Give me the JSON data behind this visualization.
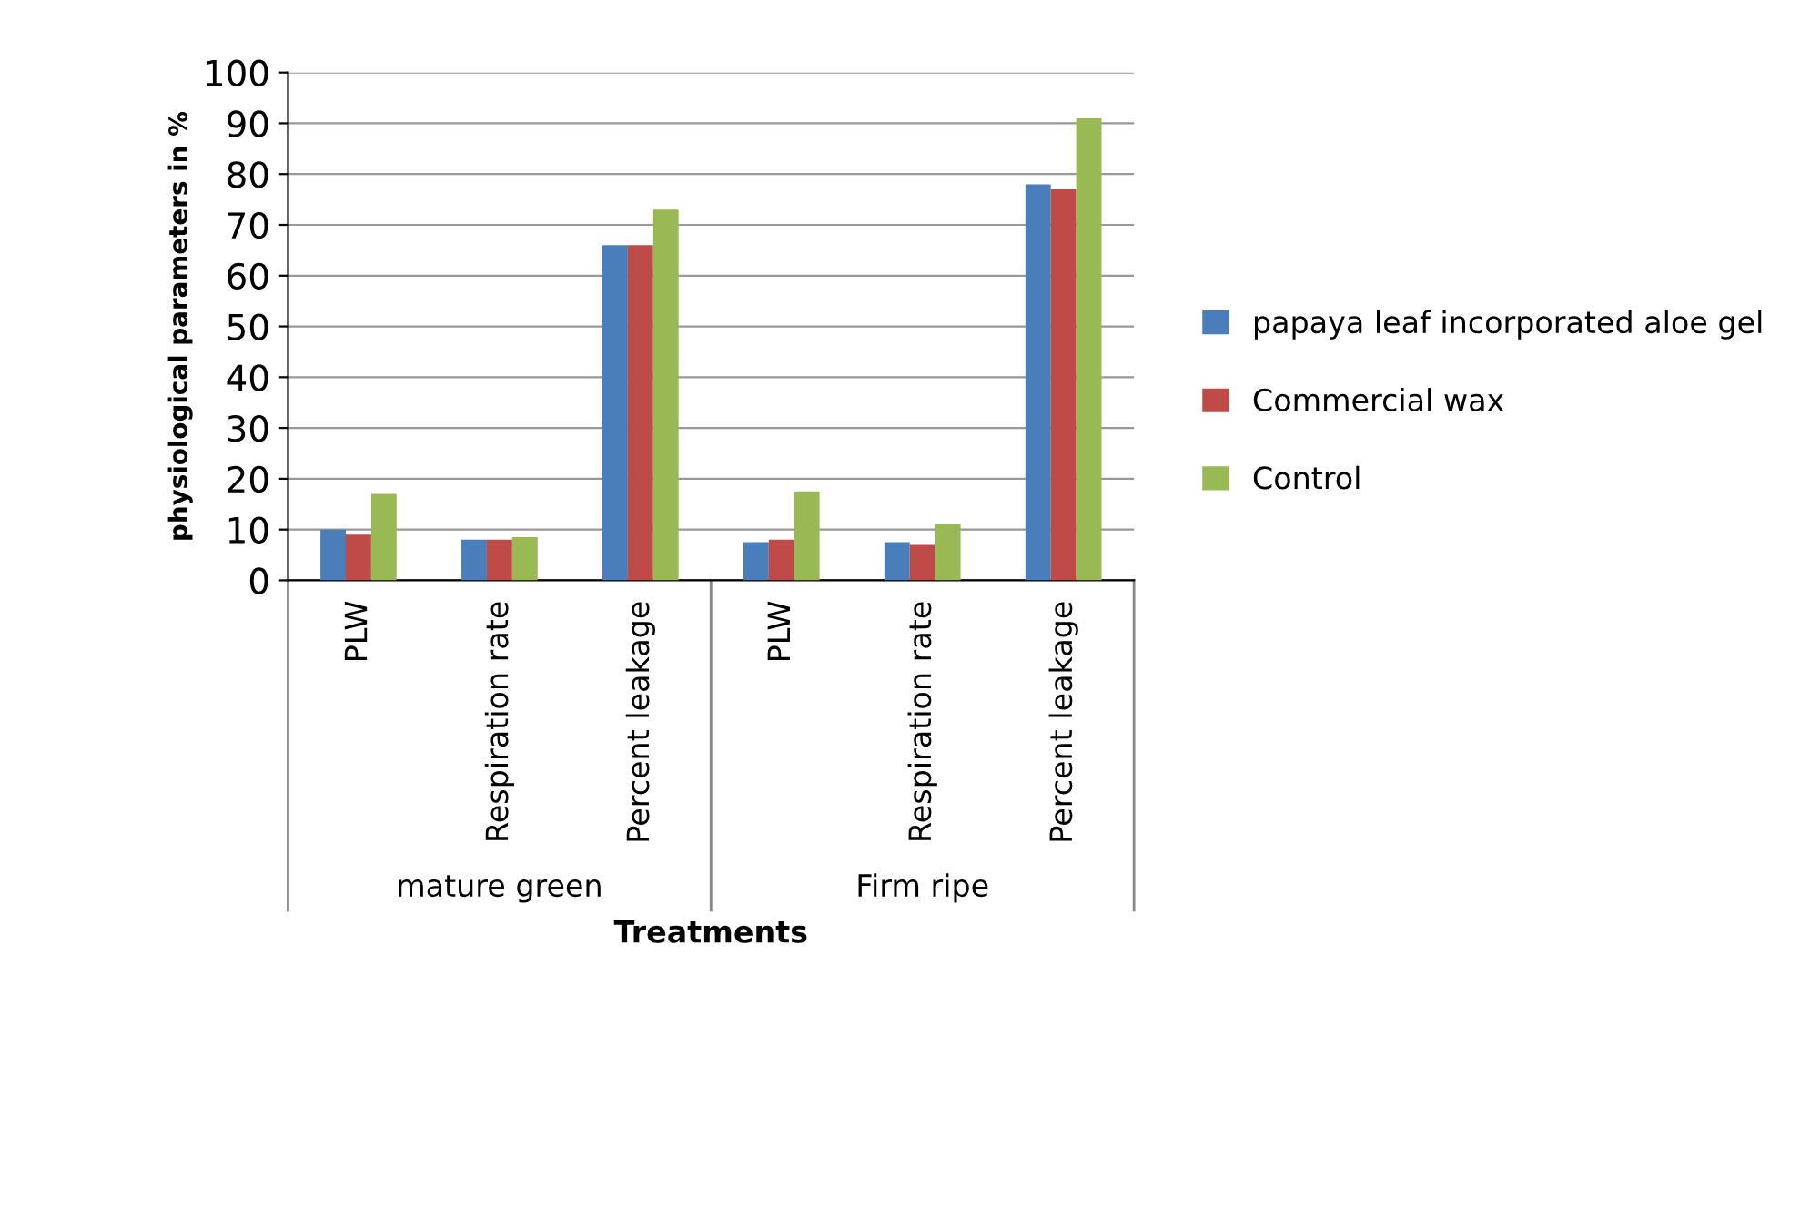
{
  "chart_data": {
    "type": "bar",
    "xlabel": "Treatments",
    "ylabel": "physiological parameters in %",
    "categories": [
      "PLW",
      "Respiration rate",
      "Percent leakage",
      "PLW",
      "Respiration rate",
      "Percent leakage"
    ],
    "series": [
      {
        "name": "papaya leaf incorporated aloe gel",
        "color": "#4a7ebb",
        "values": [
          10,
          8,
          66,
          7.5,
          7.5,
          78
        ]
      },
      {
        "name": "Commercial wax",
        "color": "#be4b48",
        "values": [
          9,
          8,
          66,
          8,
          7,
          77
        ]
      },
      {
        "name": "Control",
        "color": "#98b954",
        "values": [
          17,
          8.5,
          73,
          17.5,
          11,
          91
        ]
      }
    ],
    "annotations": [
      "mature green",
      "Firm ripe"
    ],
    "ylim": [
      0,
      100
    ],
    "yticks": [
      0,
      10,
      20,
      30,
      40,
      50,
      60,
      70,
      80,
      90,
      100
    ],
    "grid": "y",
    "legend": "right"
  }
}
